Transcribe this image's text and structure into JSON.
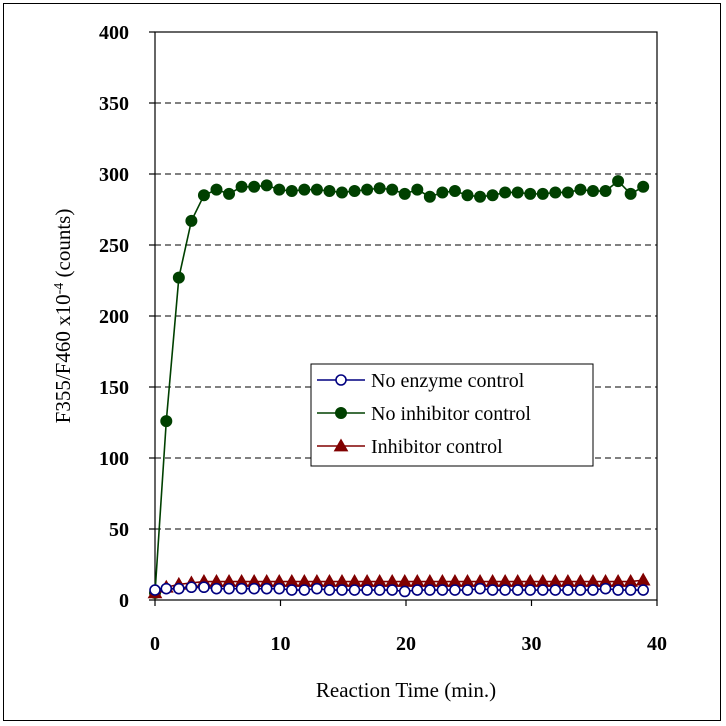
{
  "chart_data": {
    "type": "line",
    "xlabel": "Reaction Time (min.)",
    "ylabel": {
      "main": "F355/F460 x10",
      "superscript": "-4",
      "suffix": " (counts)"
    },
    "xlim": [
      0,
      40
    ],
    "ylim": [
      0,
      400
    ],
    "xticks": [
      0,
      10,
      20,
      30,
      40
    ],
    "yticks": [
      0,
      50,
      100,
      150,
      200,
      250,
      300,
      350,
      400
    ],
    "grid": "horizontal-dashed",
    "legend_position": "center-right",
    "x": [
      0,
      0.9,
      1.9,
      2.9,
      3.9,
      4.9,
      5.9,
      6.9,
      7.9,
      8.9,
      9.9,
      10.9,
      11.9,
      12.9,
      13.9,
      14.9,
      15.9,
      16.9,
      17.9,
      18.9,
      19.9,
      20.9,
      21.9,
      22.9,
      23.9,
      24.9,
      25.9,
      26.9,
      27.9,
      28.9,
      29.9,
      30.9,
      31.9,
      32.9,
      33.9,
      34.9,
      35.9,
      36.9,
      37.9,
      38.9
    ],
    "series": [
      {
        "name": "No enzyme control",
        "color": "#000080",
        "marker": "open-circle",
        "values": [
          7,
          8,
          8,
          9,
          9,
          8,
          8,
          8,
          8,
          8,
          8,
          7,
          7,
          8,
          7,
          7,
          7,
          7,
          7,
          7,
          6,
          7,
          7,
          7,
          7,
          7,
          8,
          7,
          7,
          7,
          7,
          7,
          7,
          7,
          7,
          7,
          8,
          7,
          7,
          7
        ]
      },
      {
        "name": "No inhibitor control",
        "color": "#004000",
        "marker": "filled-circle",
        "values": [
          5,
          126,
          227,
          267,
          285,
          289,
          286,
          291,
          291,
          292,
          289,
          288,
          289,
          289,
          288,
          287,
          288,
          289,
          290,
          289,
          286,
          289,
          284,
          287,
          288,
          285,
          284,
          285,
          287,
          287,
          286,
          286,
          287,
          287,
          289,
          288,
          288,
          295,
          286,
          291
        ]
      },
      {
        "name": "Inhibitor control",
        "color": "#800000",
        "marker": "filled-triangle",
        "values": [
          5,
          9,
          11,
          12,
          13,
          13,
          13,
          13,
          13,
          13,
          13,
          13,
          13,
          13,
          13,
          13,
          13,
          13,
          13,
          13,
          13,
          13,
          13,
          13,
          13,
          13,
          13,
          13,
          13,
          13,
          13,
          13,
          13,
          13,
          13,
          13,
          13,
          13,
          13,
          14
        ]
      }
    ]
  }
}
